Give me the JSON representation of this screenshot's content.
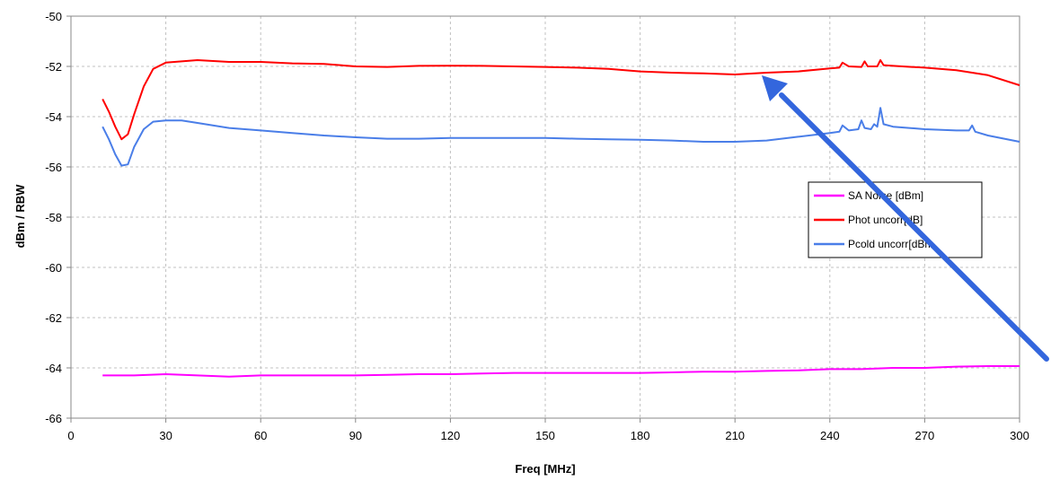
{
  "chart_data": {
    "type": "line",
    "title": "",
    "xlabel": "Freq [MHz]",
    "ylabel": "dBm / RBW",
    "xlim": [
      0,
      300
    ],
    "ylim": [
      -66,
      -50
    ],
    "xticks": [
      "0",
      "30",
      "60",
      "90",
      "120",
      "150",
      "180",
      "210",
      "240",
      "270",
      "300"
    ],
    "yticks": [
      "-50",
      "-52",
      "-54",
      "-56",
      "-58",
      "-60",
      "-62",
      "-64",
      "-66"
    ],
    "grid": true,
    "legend_position": "right",
    "series": [
      {
        "name": "SA Noise [dBm]",
        "color": "#ff00ff",
        "x": [
          10,
          20,
          30,
          40,
          50,
          60,
          70,
          80,
          90,
          100,
          110,
          120,
          130,
          140,
          150,
          160,
          170,
          180,
          190,
          200,
          210,
          220,
          230,
          240,
          250,
          260,
          270,
          280,
          290,
          300
        ],
        "y": [
          -64.3,
          -64.3,
          -64.25,
          -64.3,
          -64.35,
          -64.3,
          -64.3,
          -64.3,
          -64.3,
          -64.28,
          -64.25,
          -64.25,
          -64.22,
          -64.2,
          -64.2,
          -64.2,
          -64.2,
          -64.2,
          -64.18,
          -64.15,
          -64.15,
          -64.12,
          -64.1,
          -64.05,
          -64.05,
          -64.0,
          -64.0,
          -63.95,
          -63.93,
          -63.93
        ]
      },
      {
        "name": "Phot uncorr[dB]",
        "color": "#ff0000",
        "x": [
          10,
          12,
          14,
          16,
          18,
          20,
          23,
          26,
          30,
          35,
          40,
          50,
          60,
          70,
          80,
          90,
          100,
          110,
          120,
          130,
          140,
          150,
          160,
          170,
          180,
          190,
          200,
          210,
          220,
          230,
          240,
          243,
          244,
          246,
          250,
          251,
          252,
          255,
          256,
          257,
          260,
          270,
          280,
          290,
          300
        ],
        "y": [
          -53.3,
          -53.8,
          -54.4,
          -54.9,
          -54.7,
          -53.9,
          -52.8,
          -52.1,
          -51.85,
          -51.8,
          -51.75,
          -51.82,
          -51.82,
          -51.88,
          -51.9,
          -52.0,
          -52.02,
          -51.98,
          -51.97,
          -51.98,
          -52.0,
          -52.02,
          -52.05,
          -52.1,
          -52.2,
          -52.25,
          -52.28,
          -52.32,
          -52.25,
          -52.2,
          -52.08,
          -52.05,
          -51.85,
          -52.0,
          -52.02,
          -51.8,
          -52.0,
          -52.0,
          -51.75,
          -51.95,
          -51.98,
          -52.05,
          -52.15,
          -52.35,
          -52.75
        ]
      },
      {
        "name": "Pcold uncorr[dBm",
        "color": "#4a7ee8",
        "x": [
          10,
          12,
          14,
          16,
          18,
          20,
          23,
          26,
          30,
          35,
          40,
          50,
          60,
          70,
          80,
          90,
          100,
          110,
          120,
          130,
          140,
          150,
          160,
          170,
          180,
          190,
          200,
          210,
          220,
          230,
          240,
          243,
          244,
          246,
          249,
          250,
          251,
          253,
          254,
          255,
          256,
          257,
          260,
          270,
          280,
          284,
          285,
          286,
          290,
          300
        ],
        "y": [
          -54.4,
          -54.9,
          -55.5,
          -55.95,
          -55.9,
          -55.2,
          -54.5,
          -54.2,
          -54.15,
          -54.15,
          -54.25,
          -54.45,
          -54.55,
          -54.65,
          -54.75,
          -54.82,
          -54.88,
          -54.88,
          -54.85,
          -54.85,
          -54.85,
          -54.85,
          -54.88,
          -54.9,
          -54.92,
          -54.95,
          -55.0,
          -55.0,
          -54.95,
          -54.8,
          -54.65,
          -54.6,
          -54.35,
          -54.55,
          -54.5,
          -54.15,
          -54.45,
          -54.5,
          -54.3,
          -54.4,
          -53.65,
          -54.3,
          -54.4,
          -54.5,
          -54.55,
          -54.55,
          -54.35,
          -54.6,
          -54.75,
          -55.0
        ]
      }
    ]
  }
}
